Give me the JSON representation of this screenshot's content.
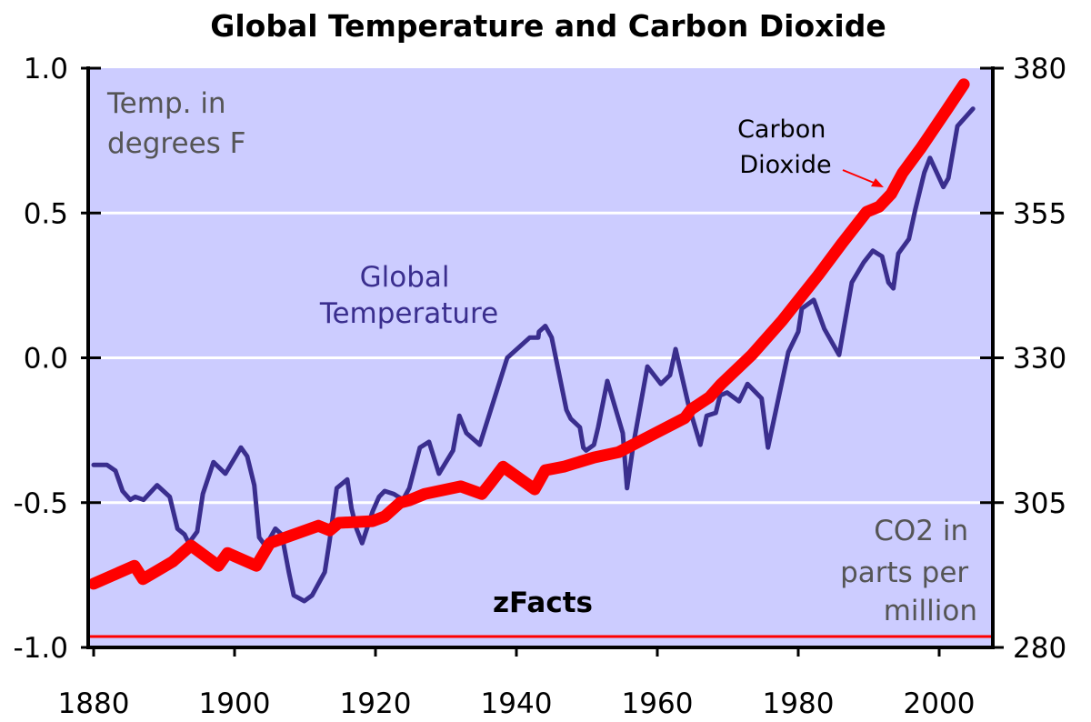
{
  "chart_data": {
    "type": "line",
    "title": "Global Temperature and Carbon Dioxide",
    "xlabel": "",
    "ylabel_left": "Temp. in degrees F",
    "ylabel_right": "CO2 in parts per million",
    "xlim": [
      1879,
      2008
    ],
    "ylim_left": [
      -1.0,
      1.0
    ],
    "ylim_right": [
      280,
      380
    ],
    "x_ticks": [
      "1880",
      "1900",
      "1920",
      "1940",
      "1960",
      "1980",
      "2000"
    ],
    "y_ticks_left": [
      "1.0",
      "0.5",
      "0.0",
      "-0.5",
      "-1.0"
    ],
    "y_ticks_right": [
      "380",
      "355",
      "330",
      "305",
      "280"
    ],
    "grid": "horizontal",
    "colors": {
      "background": "#ccccff",
      "temperature": "#3a2e8e",
      "co2": "#ff0000",
      "muted_text": "#555555"
    },
    "annotations": {
      "temp_units": [
        "Temp. in",
        "degrees F"
      ],
      "temp_label": [
        "Global",
        "Temperature"
      ],
      "co2_label": [
        "Carbon",
        "Dioxide"
      ],
      "co2_units": [
        "CO2 in",
        "parts per",
        "million"
      ],
      "source": "zFacts"
    },
    "series": [
      {
        "name": "Global Temperature",
        "axis": "left",
        "points": [
          [
            1880,
            -0.37
          ],
          [
            1881.9,
            -0.37
          ],
          [
            1883.1,
            -0.39
          ],
          [
            1884.1,
            -0.46
          ],
          [
            1885.2,
            -0.49
          ],
          [
            1885.9,
            -0.48
          ],
          [
            1887.1,
            -0.49
          ],
          [
            1889,
            -0.44
          ],
          [
            1890.8,
            -0.48
          ],
          [
            1891.9,
            -0.59
          ],
          [
            1892.9,
            -0.61
          ],
          [
            1893.5,
            -0.64
          ],
          [
            1894.7,
            -0.6
          ],
          [
            1895.5,
            -0.47
          ],
          [
            1897,
            -0.36
          ],
          [
            1898.7,
            -0.4
          ],
          [
            1900.9,
            -0.31
          ],
          [
            1901.8,
            -0.34
          ],
          [
            1902.8,
            -0.44
          ],
          [
            1903.5,
            -0.62
          ],
          [
            1904.4,
            -0.65
          ],
          [
            1905.8,
            -0.59
          ],
          [
            1906.7,
            -0.61
          ],
          [
            1907.7,
            -0.74
          ],
          [
            1908.4,
            -0.82
          ],
          [
            1909.9,
            -0.84
          ],
          [
            1911,
            -0.82
          ],
          [
            1912.8,
            -0.74
          ],
          [
            1913.5,
            -0.63
          ],
          [
            1914.5,
            -0.45
          ],
          [
            1916,
            -0.42
          ],
          [
            1916.6,
            -0.52
          ],
          [
            1917.3,
            -0.59
          ],
          [
            1918.1,
            -0.64
          ],
          [
            1919.6,
            -0.53
          ],
          [
            1920.5,
            -0.48
          ],
          [
            1921.3,
            -0.46
          ],
          [
            1922.6,
            -0.47
          ],
          [
            1923.9,
            -0.49
          ],
          [
            1924.8,
            -0.45
          ],
          [
            1926.3,
            -0.31
          ],
          [
            1927.6,
            -0.29
          ],
          [
            1929,
            -0.4
          ],
          [
            1931,
            -0.32
          ],
          [
            1931.9,
            -0.2
          ],
          [
            1932.9,
            -0.26
          ],
          [
            1934.8,
            -0.3
          ],
          [
            1938.7,
            0.0
          ],
          [
            1941.9,
            0.07
          ],
          [
            1943.1,
            0.07
          ],
          [
            1943.2,
            0.09
          ],
          [
            1944.1,
            0.11
          ],
          [
            1945,
            0.07
          ],
          [
            1947.1,
            -0.18
          ],
          [
            1947.7,
            -0.21
          ],
          [
            1949,
            -0.24
          ],
          [
            1949.5,
            -0.31
          ],
          [
            1949.9,
            -0.32
          ],
          [
            1951,
            -0.3
          ],
          [
            1951.6,
            -0.24
          ],
          [
            1952.9,
            -0.08
          ],
          [
            1955.1,
            -0.26
          ],
          [
            1955.7,
            -0.45
          ],
          [
            1956.6,
            -0.3
          ],
          [
            1958.6,
            -0.03
          ],
          [
            1960.5,
            -0.09
          ],
          [
            1961.8,
            -0.06
          ],
          [
            1962.6,
            0.03
          ],
          [
            1964.4,
            -0.16
          ],
          [
            1966.1,
            -0.3
          ],
          [
            1967,
            -0.2
          ],
          [
            1968.3,
            -0.19
          ],
          [
            1968.9,
            -0.13
          ],
          [
            1969.9,
            -0.12
          ],
          [
            1971.6,
            -0.15
          ],
          [
            1972.8,
            -0.09
          ],
          [
            1974.8,
            -0.14
          ],
          [
            1975.7,
            -0.31
          ],
          [
            1978.6,
            0.02
          ],
          [
            1980,
            0.09
          ],
          [
            1980.5,
            0.17
          ],
          [
            1982.2,
            0.2
          ],
          [
            1983.7,
            0.1
          ],
          [
            1985.8,
            0.01
          ],
          [
            1987.6,
            0.26
          ],
          [
            1989.3,
            0.33
          ],
          [
            1990.6,
            0.37
          ],
          [
            1991.9,
            0.35
          ],
          [
            1992.8,
            0.26
          ],
          [
            1993.5,
            0.24
          ],
          [
            1994.2,
            0.36
          ],
          [
            1995.7,
            0.41
          ],
          [
            1996.6,
            0.51
          ],
          [
            1997.9,
            0.64
          ],
          [
            1998.7,
            0.69
          ],
          [
            2000.6,
            0.59
          ],
          [
            2001.3,
            0.62
          ],
          [
            2002.6,
            0.8
          ],
          [
            2004.8,
            0.86
          ]
        ]
      },
      {
        "name": "Carbon Dioxide",
        "axis": "right",
        "points": [
          [
            1880,
            291.0
          ],
          [
            1885.8,
            294.1
          ],
          [
            1887,
            291.8
          ],
          [
            1891.2,
            294.8
          ],
          [
            1893.8,
            297.6
          ],
          [
            1897.7,
            294.1
          ],
          [
            1899,
            296.3
          ],
          [
            1903.1,
            294.1
          ],
          [
            1905,
            298.0
          ],
          [
            1911.9,
            301.0
          ],
          [
            1913.5,
            300.2
          ],
          [
            1914.8,
            301.5
          ],
          [
            1919.6,
            301.8
          ],
          [
            1921.3,
            302.6
          ],
          [
            1923.5,
            305.0
          ],
          [
            1924.8,
            305.4
          ],
          [
            1927,
            306.5
          ],
          [
            1932.1,
            307.8
          ],
          [
            1935.1,
            306.5
          ],
          [
            1936.4,
            308.5
          ],
          [
            1938.1,
            311.2
          ],
          [
            1942.6,
            307.3
          ],
          [
            1944.1,
            310.6
          ],
          [
            1946.7,
            311.2
          ],
          [
            1951,
            312.8
          ],
          [
            1954.5,
            313.7
          ],
          [
            1959.6,
            316.9
          ],
          [
            1963.9,
            319.6
          ],
          [
            1964.8,
            321.1
          ],
          [
            1967.4,
            323.2
          ],
          [
            1969,
            325.4
          ],
          [
            1973.4,
            330.5
          ],
          [
            1977.7,
            336.4
          ],
          [
            1982.8,
            344.2
          ],
          [
            1986.3,
            349.9
          ],
          [
            1989.7,
            355.2
          ],
          [
            1991.5,
            356.1
          ],
          [
            1993.2,
            358.3
          ],
          [
            1994.8,
            361.9
          ],
          [
            1997.4,
            366.2
          ],
          [
            2000.9,
            372.5
          ],
          [
            2003.5,
            377.2
          ]
        ]
      }
    ]
  }
}
